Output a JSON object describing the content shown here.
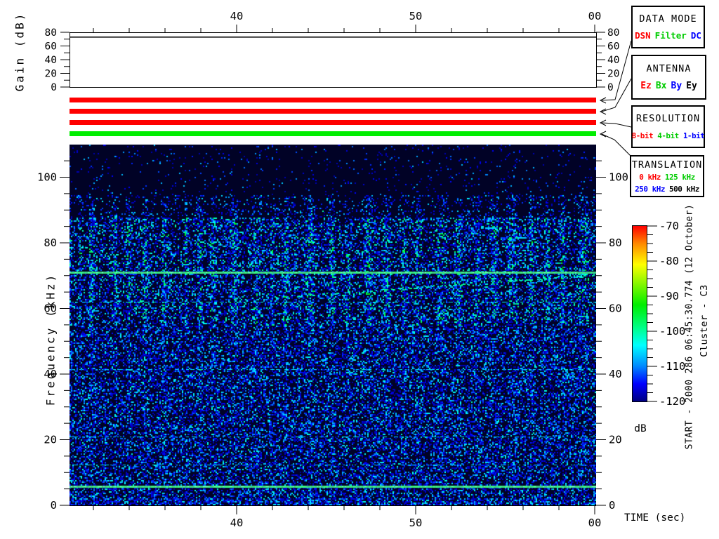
{
  "window": {
    "background": "#ffffff",
    "instrument_view": "wideband spectrogram display"
  },
  "gain_panel": {
    "ylabel": "Gain (dB)",
    "trace_gain_db": 73
  },
  "time_axis": {
    "label": "TIME (sec)"
  },
  "freq_axis": {
    "label": "Frequency (kHz)"
  },
  "colorbar_unit": "dB",
  "side_text": {
    "start_line": "START - 2000 286 06:45:30.774 (12 October)",
    "spacecraft": "Cluster - C3"
  },
  "legend_boxes": [
    {
      "title": "DATA MODE",
      "lines": [
        [
          {
            "text": "DSN",
            "color": "#ff0000"
          },
          {
            "text": "Filter",
            "color": "#00cc00"
          },
          {
            "text": "DC",
            "color": "#0000ff"
          }
        ]
      ]
    },
    {
      "title": "ANTENNA",
      "lines": [
        [
          {
            "text": "Ez",
            "color": "#ff0000"
          },
          {
            "text": "Bx",
            "color": "#00cc00"
          },
          {
            "text": "By",
            "color": "#0000ff"
          },
          {
            "text": "Ey",
            "color": "#000000"
          }
        ]
      ]
    },
    {
      "title": "RESOLUTION",
      "lines": [
        [
          {
            "text": "8-bit",
            "color": "#ff0000"
          },
          {
            "text": "4-bit",
            "color": "#00cc00"
          },
          {
            "text": "1-bit",
            "color": "#0000ff"
          }
        ]
      ]
    },
    {
      "title": "TRANSLATION",
      "lines": [
        [
          {
            "text": "0 kHz",
            "color": "#ff0000"
          },
          {
            "text": "125 kHz",
            "color": "#00cc00"
          }
        ],
        [
          {
            "text": "250 kHz",
            "color": "#0000ff"
          },
          {
            "text": "500 kHz",
            "color": "#000000"
          }
        ]
      ]
    }
  ],
  "status_bars": [
    {
      "name": "data-mode",
      "value": "DSN",
      "color": "#ff0000"
    },
    {
      "name": "antenna",
      "value": "Ez",
      "color": "#ff0000"
    },
    {
      "name": "resolution",
      "value": "8-bit",
      "color": "#ff0000"
    },
    {
      "name": "translation",
      "value": "125 kHz",
      "color": "#00ee00"
    }
  ],
  "chart_data": {
    "type": "heatmap",
    "panels": [
      {
        "name": "gain",
        "type": "line",
        "ylabel": "Gain (dB)",
        "ylim": [
          0,
          80
        ],
        "yticks": [
          0,
          20,
          40,
          60,
          80
        ],
        "yticks_minor": [
          10,
          30,
          50,
          70
        ],
        "series": [
          {
            "name": "receiver-gain",
            "shape": "constant",
            "value_db": 73
          }
        ]
      },
      {
        "name": "status-bars",
        "type": "categorical-timeline",
        "rows": [
          {
            "label": "DATA MODE",
            "value": "DSN",
            "color": "#ff0000"
          },
          {
            "label": "ANTENNA",
            "value": "Ez",
            "color": "#ff0000"
          },
          {
            "label": "RESOLUTION",
            "value": "8-bit",
            "color": "#ff0000"
          },
          {
            "label": "TRANSLATION",
            "value": "125 kHz",
            "color": "#00ee00"
          }
        ]
      },
      {
        "name": "spectrogram",
        "type": "heatmap",
        "xlabel": "TIME (sec)",
        "ylabel": "Frequency (kHz)",
        "xlim_sec": [
          30.774,
          60.3
        ],
        "xticks": [
          {
            "sec": 40,
            "label": "40"
          },
          {
            "sec": 50,
            "label": "50"
          },
          {
            "sec": 60,
            "label": "00"
          }
        ],
        "minor_xtick_interval_sec": 2,
        "ylim_khz": [
          0,
          110
        ],
        "yticks_khz": [
          0,
          20,
          40,
          60,
          80,
          100
        ],
        "minor_ytick_interval_khz": 5,
        "z_range_db": [
          -120,
          -70
        ],
        "features": [
          {
            "kind": "narrowband-line",
            "freq_khz": 71,
            "color": "spring-green",
            "extent": "full-width"
          },
          {
            "kind": "narrowband-line",
            "freq_khz": 5.8,
            "color": "spring-green",
            "extent": "full-width"
          },
          {
            "kind": "burst-band",
            "freq_khz_range": [
              55,
              88
            ],
            "description": "quasi-periodic vertical bursts of enhanced blue-cyan noise"
          },
          {
            "kind": "broadband-noise",
            "freq_khz_range": [
              0,
              55
            ],
            "description": "uniform blue speckle noise near -115 dB"
          },
          {
            "kind": "quiet-background",
            "freq_khz_above": 90,
            "description": "very dark navy, sparse speckles"
          },
          {
            "kind": "faint-line",
            "freq_khz": 62
          },
          {
            "kind": "faint-line",
            "freq_khz": 41.5
          },
          {
            "kind": "faint-line",
            "freq_khz": 21
          },
          {
            "kind": "faint-line",
            "freq_khz": 12.5
          },
          {
            "kind": "drifting-tone",
            "from_sec": 40,
            "from_khz": 63,
            "to_sec": 60,
            "to_khz": 70.5
          }
        ]
      }
    ],
    "colorbar": {
      "orientation": "vertical",
      "unit": "dB",
      "range": [
        -120,
        -70
      ],
      "ticks": [
        -70,
        -80,
        -90,
        -100,
        -110,
        -120
      ],
      "minor_tick_interval": 2.5,
      "colormap_top_to_bottom": [
        "#ff0000",
        "#ff8800",
        "#ffff00",
        "#00ee00",
        "#00ff88",
        "#00ffff",
        "#0088ff",
        "#0000ff",
        "#000080"
      ]
    }
  }
}
